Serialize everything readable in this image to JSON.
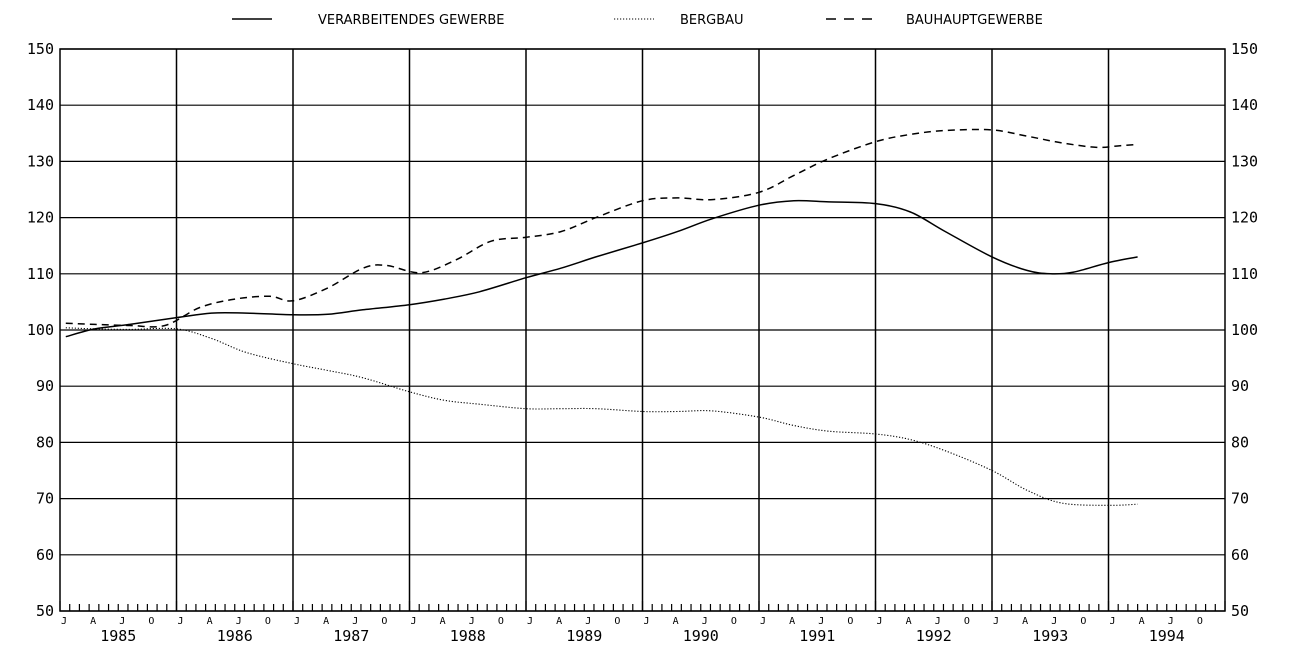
{
  "chart_data": {
    "type": "line",
    "title": "",
    "xlabel": "",
    "ylabel": "",
    "ylim": [
      50,
      150
    ],
    "xlim": [
      1985.0,
      1995.0
    ],
    "yticks": [
      50,
      60,
      70,
      80,
      90,
      100,
      110,
      120,
      130,
      140,
      150
    ],
    "ytick_labels": [
      "50",
      "60",
      "70",
      "80",
      "90",
      "100",
      "110",
      "120",
      "130",
      "140",
      "150"
    ],
    "years": [
      "1985",
      "1986",
      "1987",
      "1988",
      "1989",
      "1990",
      "1991",
      "1992",
      "1993",
      "1994"
    ],
    "month_labels": [
      "J",
      "A",
      "J",
      "O"
    ],
    "grid": true,
    "legend_position": "top",
    "series": [
      {
        "name": "VERARBEITENDES GEWERBE",
        "style": "solid",
        "color": "#000000",
        "points": [
          [
            1985.05,
            98.8
          ],
          [
            1985.3,
            100.2
          ],
          [
            1985.6,
            101.0
          ],
          [
            1986.0,
            102.2
          ],
          [
            1986.3,
            103.0
          ],
          [
            1986.6,
            103.0
          ],
          [
            1987.0,
            102.7
          ],
          [
            1987.3,
            102.8
          ],
          [
            1987.6,
            103.6
          ],
          [
            1988.0,
            104.5
          ],
          [
            1988.3,
            105.5
          ],
          [
            1988.6,
            106.8
          ],
          [
            1989.0,
            109.3
          ],
          [
            1989.3,
            111.0
          ],
          [
            1989.6,
            113.0
          ],
          [
            1990.0,
            115.5
          ],
          [
            1990.3,
            117.5
          ],
          [
            1990.6,
            119.8
          ],
          [
            1991.0,
            122.2
          ],
          [
            1991.3,
            123.0
          ],
          [
            1991.6,
            122.8
          ],
          [
            1992.0,
            122.5
          ],
          [
            1992.3,
            121.0
          ],
          [
            1992.6,
            117.5
          ],
          [
            1993.0,
            113.0
          ],
          [
            1993.3,
            110.6
          ],
          [
            1993.5,
            110.0
          ],
          [
            1993.7,
            110.3
          ],
          [
            1994.0,
            112.0
          ],
          [
            1994.25,
            113.0
          ]
        ]
      },
      {
        "name": "BERGBAU",
        "style": "dotted",
        "color": "#000000",
        "points": [
          [
            1985.05,
            100.4
          ],
          [
            1985.3,
            100.2
          ],
          [
            1985.6,
            100.1
          ],
          [
            1986.0,
            100.2
          ],
          [
            1986.3,
            98.5
          ],
          [
            1986.6,
            96.0
          ],
          [
            1987.0,
            94.0
          ],
          [
            1987.3,
            92.8
          ],
          [
            1987.6,
            91.5
          ],
          [
            1988.0,
            89.0
          ],
          [
            1988.3,
            87.5
          ],
          [
            1988.6,
            86.8
          ],
          [
            1989.0,
            86.0
          ],
          [
            1989.3,
            86.0
          ],
          [
            1989.6,
            86.0
          ],
          [
            1990.0,
            85.5
          ],
          [
            1990.3,
            85.5
          ],
          [
            1990.6,
            85.6
          ],
          [
            1991.0,
            84.5
          ],
          [
            1991.3,
            83.0
          ],
          [
            1991.6,
            82.0
          ],
          [
            1992.0,
            81.5
          ],
          [
            1992.3,
            80.5
          ],
          [
            1992.6,
            78.5
          ],
          [
            1993.0,
            75.0
          ],
          [
            1993.3,
            71.5
          ],
          [
            1993.6,
            69.2
          ],
          [
            1994.0,
            68.8
          ],
          [
            1994.25,
            69.0
          ]
        ]
      },
      {
        "name": "BAUHAUPTGEWERBE",
        "style": "dashed",
        "color": "#000000",
        "points": [
          [
            1985.05,
            101.2
          ],
          [
            1985.3,
            101.0
          ],
          [
            1985.6,
            100.8
          ],
          [
            1985.9,
            100.8
          ],
          [
            1986.2,
            104.0
          ],
          [
            1986.5,
            105.5
          ],
          [
            1986.8,
            106.0
          ],
          [
            1987.0,
            105.2
          ],
          [
            1987.3,
            107.5
          ],
          [
            1987.6,
            111.0
          ],
          [
            1987.8,
            111.5
          ],
          [
            1988.1,
            110.2
          ],
          [
            1988.4,
            112.5
          ],
          [
            1988.7,
            115.8
          ],
          [
            1989.0,
            116.5
          ],
          [
            1989.3,
            117.5
          ],
          [
            1989.6,
            120.0
          ],
          [
            1990.0,
            123.0
          ],
          [
            1990.3,
            123.5
          ],
          [
            1990.6,
            123.2
          ],
          [
            1991.0,
            124.5
          ],
          [
            1991.3,
            127.5
          ],
          [
            1991.6,
            130.5
          ],
          [
            1992.0,
            133.5
          ],
          [
            1992.3,
            134.8
          ],
          [
            1992.6,
            135.5
          ],
          [
            1993.0,
            135.6
          ],
          [
            1993.3,
            134.5
          ],
          [
            1993.6,
            133.3
          ],
          [
            1993.9,
            132.5
          ],
          [
            1994.1,
            132.8
          ],
          [
            1994.25,
            133.0
          ]
        ]
      }
    ]
  }
}
